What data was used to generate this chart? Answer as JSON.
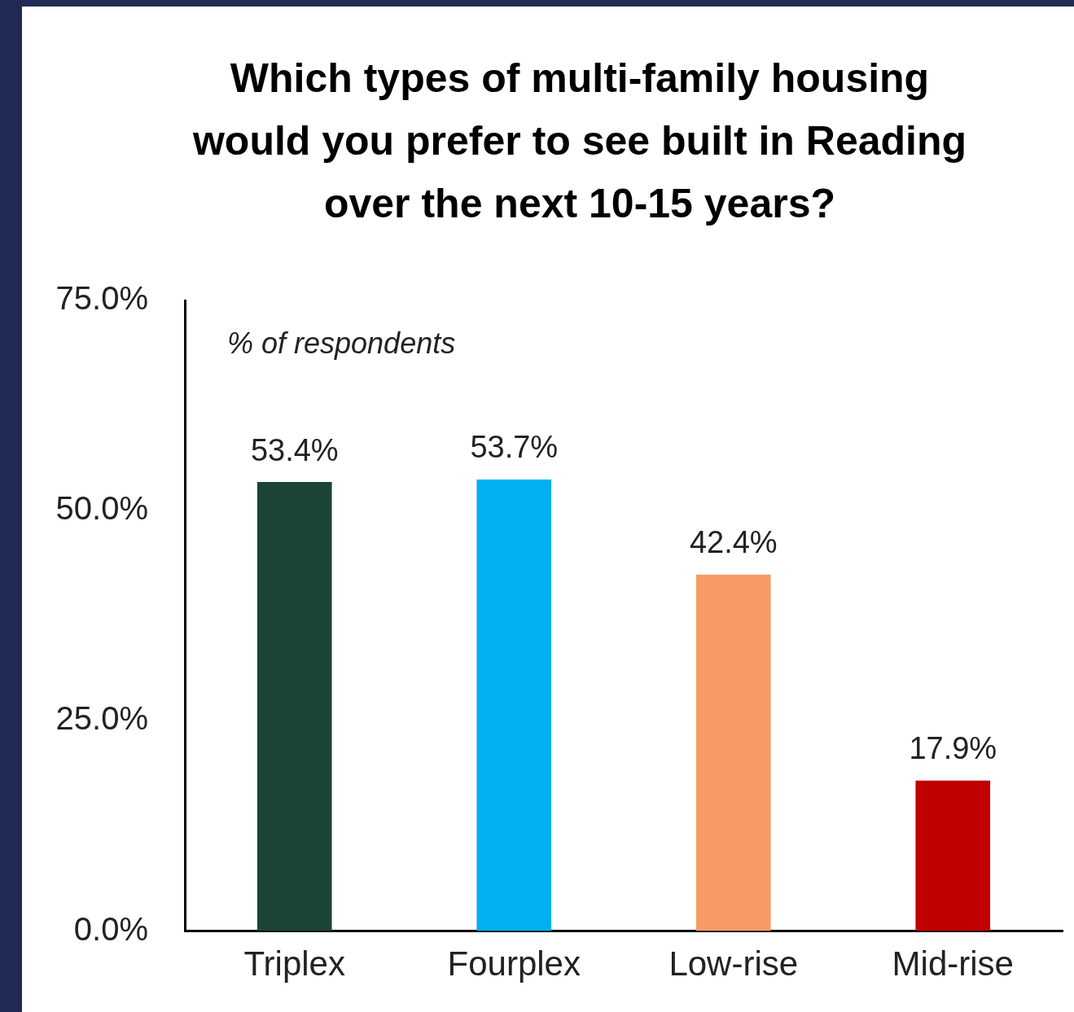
{
  "chart_data": {
    "type": "bar",
    "title": "Which types of multi-family housing would you prefer to see built in Reading over the next 10-15 years?",
    "categories": [
      "Triplex",
      "Fourplex",
      "Low-rise",
      "Mid-rise"
    ],
    "values": [
      53.4,
      53.7,
      42.4,
      17.9
    ],
    "colors": [
      "#1a4535",
      "#00b0f0",
      "#f99a66",
      "#c00000"
    ],
    "value_labels": [
      "53.4%",
      "53.7%",
      "42.4%",
      "17.9%"
    ],
    "ylim": [
      0,
      75
    ],
    "yticks": [
      {
        "value": 0,
        "label": "0.0%"
      },
      {
        "value": 25,
        "label": "25.0%"
      },
      {
        "value": 50,
        "label": "50.0%"
      },
      {
        "value": 75,
        "label": "75.0%"
      }
    ],
    "annotations": [
      "% of respondents"
    ],
    "grid": false,
    "legend": false
  }
}
